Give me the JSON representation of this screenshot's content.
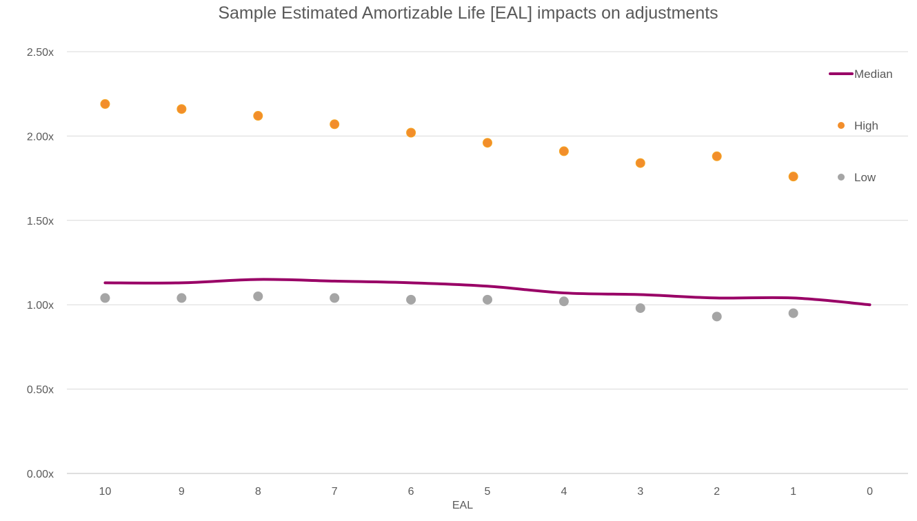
{
  "chart_data": {
    "type": "line+scatter",
    "title": "Sample Estimated Amortizable Life [EAL] impacts on adjustments",
    "xlabel": "EAL",
    "ylabel": "",
    "categories": [
      "10",
      "9",
      "8",
      "7",
      "6",
      "5",
      "4",
      "3",
      "2",
      "1",
      "0"
    ],
    "y_ticks": [
      "0.00x",
      "0.50x",
      "1.00x",
      "1.50x",
      "2.00x",
      "2.50x"
    ],
    "ylim": [
      0,
      2.5
    ],
    "grid": true,
    "legend_position": "right",
    "series": [
      {
        "name": "Median",
        "kind": "smooth-line",
        "color": "#990066",
        "values": [
          1.13,
          1.13,
          1.15,
          1.14,
          1.13,
          1.11,
          1.07,
          1.06,
          1.04,
          1.04,
          1.0
        ]
      },
      {
        "name": "High",
        "kind": "marker",
        "color": "#F28E2B",
        "values": [
          2.19,
          2.16,
          2.12,
          2.07,
          2.02,
          1.96,
          1.91,
          1.84,
          1.88,
          1.76,
          null
        ]
      },
      {
        "name": "Low",
        "kind": "marker",
        "color": "#A5A5A5",
        "values": [
          1.04,
          1.04,
          1.05,
          1.04,
          1.03,
          1.03,
          1.02,
          0.98,
          0.93,
          0.95,
          null
        ]
      }
    ]
  }
}
